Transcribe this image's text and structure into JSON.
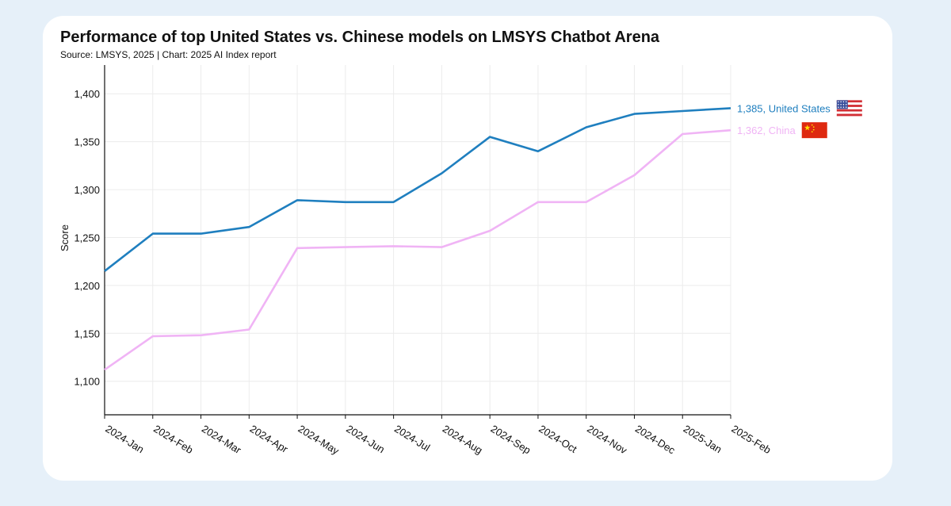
{
  "chart_data": {
    "type": "line",
    "title": "Performance of top United States vs. Chinese models on LMSYS Chatbot Arena",
    "subtitle": "Source: LMSYS, 2025 | Chart: 2025 AI Index report",
    "xlabel": "",
    "ylabel": "Score",
    "ylim": [
      1065,
      1430
    ],
    "yticks": [
      1100,
      1150,
      1200,
      1250,
      1300,
      1350,
      1400
    ],
    "ytick_labels": [
      "1,100",
      "1,150",
      "1,200",
      "1,250",
      "1,300",
      "1,350",
      "1,400"
    ],
    "categories": [
      "2024-Jan",
      "2024-Feb",
      "2024-Mar",
      "2024-Apr",
      "2024-May",
      "2024-Jun",
      "2024-Jul",
      "2024-Aug",
      "2024-Sep",
      "2024-Oct",
      "2024-Nov",
      "2024-Dec",
      "2025-Jan",
      "2025-Feb"
    ],
    "grid": true,
    "series": [
      {
        "name": "United States",
        "color": "#1f7fbf",
        "end_label": "1,385, United States",
        "flag_icon": "us-flag-icon",
        "values": [
          1215,
          1254,
          1254,
          1261,
          1289,
          1287,
          1287,
          1317,
          1355,
          1340,
          1365,
          1379,
          1382,
          1385
        ]
      },
      {
        "name": "China",
        "color": "#f0b4f5",
        "end_label": "1,362, China",
        "flag_icon": "china-flag-icon",
        "values": [
          1112,
          1147,
          1148,
          1154,
          1239,
          1240,
          1241,
          1240,
          1257,
          1287,
          1287,
          1315,
          1358,
          1362
        ]
      }
    ]
  }
}
